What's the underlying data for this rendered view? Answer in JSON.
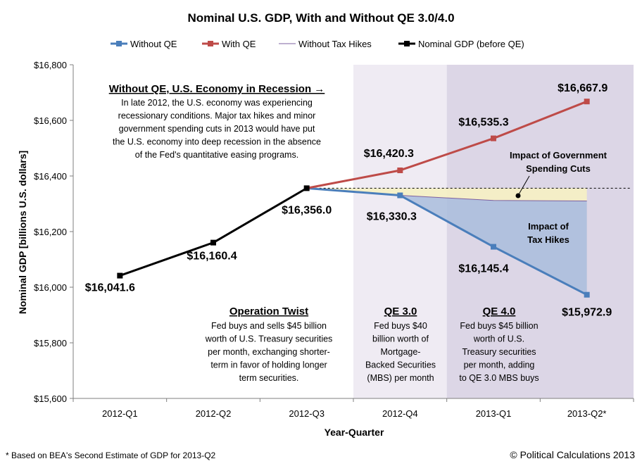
{
  "chart_data": {
    "type": "line",
    "title": "Nominal U.S. GDP, With and Without QE 3.0/4.0",
    "xlabel": "Year-Quarter",
    "ylabel": "Nominal GDP [billions U.S. dollars]",
    "ylim": [
      15600,
      16800
    ],
    "yticks": [
      15600,
      15800,
      16000,
      16200,
      16400,
      16600,
      16800
    ],
    "ytick_labels": [
      "$15,600",
      "$15,800",
      "$16,000",
      "$16,200",
      "$16,400",
      "$16,600",
      "$16,800"
    ],
    "categories": [
      "2012-Q1",
      "2012-Q2",
      "2012-Q3",
      "2012-Q4",
      "2013-Q1",
      "2013-Q2*"
    ],
    "legend_position": "top",
    "grid": false,
    "series": [
      {
        "name": "Without QE",
        "color": "#4a7ebb",
        "values": [
          null,
          null,
          16356.0,
          16330.3,
          16145.4,
          15972.9
        ]
      },
      {
        "name": "With QE",
        "color": "#be4b48",
        "values": [
          null,
          null,
          16356.0,
          16420.3,
          16535.3,
          16667.9
        ]
      },
      {
        "name": "Without Tax Hikes",
        "color": "#7d60a0",
        "values": [
          null,
          null,
          16356.0,
          16330.3,
          16312.0,
          16310.0
        ]
      },
      {
        "name": "Nominal GDP (before QE)",
        "color": "#000000",
        "values": [
          16041.6,
          16160.4,
          16356.0,
          null,
          null,
          null
        ]
      }
    ],
    "reference_line": {
      "value": 16356.0,
      "from_index": 2
    },
    "data_labels": [
      {
        "series": 3,
        "index": 0,
        "text": "$16,041.6",
        "color": "#000000"
      },
      {
        "series": 3,
        "index": 1,
        "text": "$16,160.4",
        "color": "#000000"
      },
      {
        "series": 3,
        "index": 2,
        "text": "$16,356.0",
        "color": "#000000"
      },
      {
        "series": 0,
        "index": 3,
        "text": "$16,330.3",
        "color": "#4a7ebb"
      },
      {
        "series": 0,
        "index": 4,
        "text": "$16,145.4",
        "color": "#4a7ebb"
      },
      {
        "series": 0,
        "index": 5,
        "text": "$15,972.9",
        "color": "#4a7ebb"
      },
      {
        "series": 1,
        "index": 3,
        "text": "$16,420.3",
        "color": "#be4b48"
      },
      {
        "series": 1,
        "index": 4,
        "text": "$16,535.3",
        "color": "#be4b48"
      },
      {
        "series": 1,
        "index": 5,
        "text": "$16,667.9",
        "color": "#be4b48"
      }
    ],
    "shaded_periods": [
      {
        "label": "QE 3.0",
        "from": 3,
        "to": 4,
        "color": "#efebf3"
      },
      {
        "label": "QE 4.0",
        "from": 4,
        "to": 6,
        "color": "#dcd6e6"
      }
    ],
    "annotations": {
      "recession_title": "Without QE, U.S. Economy in Recession →",
      "recession_text": [
        "In late 2012, the U.S. economy was experiencing",
        "recessionary conditions.  Major tax hikes and minor",
        "government spending cuts in 2013 would have put",
        "the U.S. economy into deep recession in the absence",
        "of the Fed's quantitative easing programs."
      ],
      "gov_cuts": [
        "Impact of Government",
        "Spending Cuts"
      ],
      "tax_hikes": [
        "Impact of",
        "Tax Hikes"
      ],
      "op_twist_title": "Operation Twist",
      "op_twist_text": [
        "Fed buys and sells $45 billion",
        "worth of U.S. Treasury securities",
        "per month, exchanging shorter-",
        "term in favor of holding longer",
        "term securities."
      ],
      "qe3_title": "QE 3.0",
      "qe3_text": [
        "Fed buys $40",
        "billion worth of",
        "Mortgage-",
        "Backed Securities",
        "(MBS) per month"
      ],
      "qe4_title": "QE 4.0",
      "qe4_text": [
        "Fed buys $45 billion",
        "worth of U.S.",
        "Treasury securities",
        "per month, adding",
        "to QE 3.0 MBS buys"
      ]
    },
    "footnote": "* Based on BEA's Second Estimate of  GDP for 2013-Q2",
    "credit": "© Political Calculations 2013"
  }
}
